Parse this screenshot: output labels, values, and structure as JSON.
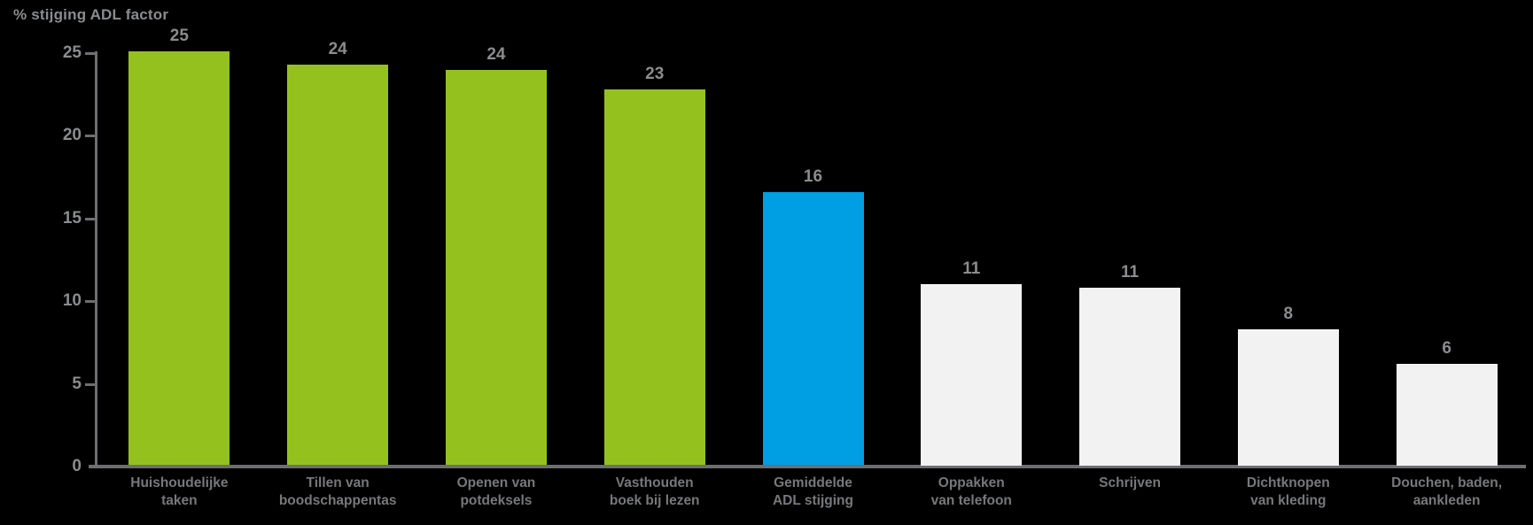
{
  "header": {
    "title": "% stijging ADL factor"
  },
  "chart_data": {
    "type": "bar",
    "title": "% stijging ADL factor",
    "xlabel": "",
    "ylabel": "% stijging ADL factor",
    "ylim": [
      0,
      25
    ],
    "yticks": [
      0,
      5,
      10,
      15,
      20,
      25
    ],
    "grid": false,
    "legend": null,
    "background_color": "#000000",
    "categories": [
      "Huishoudelijke\ntaken",
      "Tillen van\nboodschappentas",
      "Openen van\npotdeksels",
      "Vasthouden\nboek bij lezen",
      "Gemiddelde\nADL stijging",
      "Oppakken\nvan telefoon",
      "Schrijven",
      "Dichtknopen\nvan kleding",
      "Douchen, baden,\naankleden"
    ],
    "values": [
      25,
      24,
      24,
      23,
      16,
      11,
      11,
      8,
      6
    ],
    "value_labels": [
      "25",
      "24",
      "24",
      "23",
      "16",
      "11",
      "11",
      "8",
      "6"
    ],
    "bar_display_heights": [
      25.0,
      24.2,
      23.9,
      22.7,
      16.5,
      10.9,
      10.7,
      8.2,
      6.1
    ],
    "bar_colors": [
      "#95C11F",
      "#95C11F",
      "#95C11F",
      "#95C11F",
      "#009EE3",
      "#F2F2F2",
      "#F2F2F2",
      "#F2F2F2",
      "#F2F2F2"
    ],
    "highlight_bar_index": 4,
    "colors": {
      "green": "#95C11F",
      "blue": "#009EE3",
      "offwhite": "#F2F2F2",
      "axis": "#6D6E71",
      "tick_text": "#8A8C8E",
      "category_text": "#77787B"
    }
  }
}
